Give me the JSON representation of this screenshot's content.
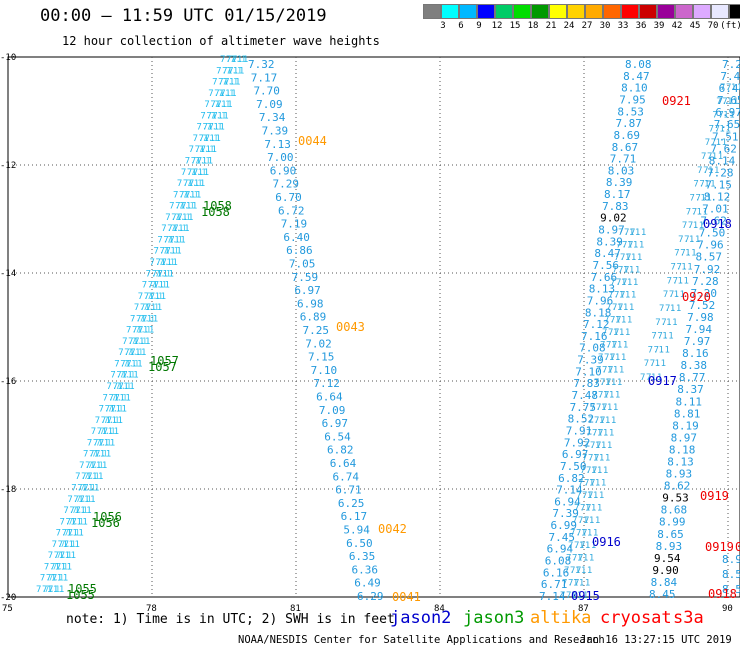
{
  "title": "00:00 – 11:59 UTC 01/15/2019",
  "subtitle": "12 hour collection of altimeter wave heights",
  "colorbar": {
    "colors": [
      "#7f7f7f",
      "#00ffff",
      "#00b8ff",
      "#0000ff",
      "#00cc66",
      "#00dd00",
      "#009900",
      "#ffff00",
      "#ffd200",
      "#ffaa00",
      "#ff6600",
      "#ff0000",
      "#cc0000",
      "#990099",
      "#cc66cc",
      "#ddaaff",
      "#e8e8ff",
      "#000000"
    ],
    "labels": [
      "3",
      "6",
      "9",
      "12",
      "15",
      "18",
      "21",
      "24",
      "27",
      "30",
      "33",
      "36",
      "39",
      "42",
      "45",
      "70",
      "(ft)"
    ]
  },
  "axes": {
    "lat_ticks": [
      "-10",
      "-12",
      "-14",
      "-16",
      "-18",
      "-20"
    ],
    "lon_ticks": [
      "75",
      "78",
      "81",
      "84",
      "87",
      "90"
    ]
  },
  "tracks": {
    "t1": [
      "7.32",
      "7.17",
      "7.70",
      "7.09",
      "7.34",
      "7.39",
      "7.13",
      "7.00",
      "6.90",
      "7.29",
      "6.70",
      "6.72",
      "7.19",
      "6.40",
      "6.86",
      "7.05",
      "7.59",
      "6.97",
      "6.98",
      "6.89",
      "7.25",
      "7.02",
      "7.15",
      "7.10",
      "7.12",
      "6.64",
      "7.09",
      "6.97",
      "6.54",
      "6.82",
      "6.64",
      "6.74",
      "6.71",
      "6.25",
      "6.17",
      "5.94",
      "6.50",
      "6.35",
      "6.36",
      "6.49",
      "6.29"
    ],
    "t3": [
      "8.08",
      "8.47",
      "8.10",
      "7.95",
      "8.53",
      "7.87",
      "8.69",
      "8.67",
      "7.71",
      "8.03",
      "8.39",
      "8.17",
      "7.83",
      "9.02",
      "8.97",
      "8.39",
      "8.47",
      "7.56",
      "7.66",
      "8.13",
      "7.96",
      "8.18",
      "7.12",
      "7.16",
      "7.08",
      "7.39",
      "7.10",
      "7.83",
      "7.48",
      "7.75",
      "8.52",
      "7.91",
      "7.92",
      "6.97",
      "7.50",
      "6.82",
      "7.14",
      "6.94",
      "7.39",
      "6.99",
      "7.45",
      "6.94",
      "6.08",
      "6.16",
      "6.71",
      "7.14"
    ],
    "t4": [
      "7.2",
      "7.4",
      "6.44",
      "7.65",
      "6.97",
      "7.65",
      "7.51",
      "7.62",
      "8.14",
      "7.28",
      "7.15",
      "8.12",
      "7.01",
      "7.62",
      "7.50",
      "7.96",
      "8.57",
      "7.92",
      "7.28",
      "7.20",
      "7.52",
      "7.98",
      "7.94",
      "7.97",
      "8.16",
      "8.38",
      "8.77",
      "8.37",
      "8.11",
      "8.81",
      "8.19",
      "8.97",
      "8.18",
      "8.13",
      "8.93",
      "8.62",
      "9.53",
      "8.68",
      "8.99",
      "8.65",
      "8.93",
      "9.54",
      "9.90",
      "8.84",
      "8.45"
    ],
    "t5": [
      "8.9",
      "8.5",
      "8.5"
    ]
  },
  "times": {
    "jason2": [
      "0918",
      "0917",
      "0916",
      "0915"
    ],
    "jason3": [
      "1058",
      "1057",
      "1056",
      "1055"
    ],
    "altika": [
      "0044",
      "0043",
      "0042",
      "0041"
    ],
    "cryosat": [
      "0921",
      "0920",
      "0919",
      "0919",
      "0919",
      "0918"
    ]
  },
  "note": "note: 1) Time is in UTC; 2) SWH is in feet",
  "legend": [
    {
      "label": "jason2",
      "color": "#0000cc"
    },
    {
      "label": "jason3",
      "color": "#009900"
    },
    {
      "label": "altika",
      "color": "#ff9900"
    },
    {
      "label": "cryosat",
      "color": "#ff0000"
    },
    {
      "label": "s3a",
      "color": "#ff0000"
    }
  ],
  "credit": "NOAA/NESDIS Center for Satellite Applications and Research",
  "generated": "Jan 16 13:27:15 UTC 2019",
  "colors": {
    "track": "#33aadd",
    "track_light": "#44ccee"
  }
}
